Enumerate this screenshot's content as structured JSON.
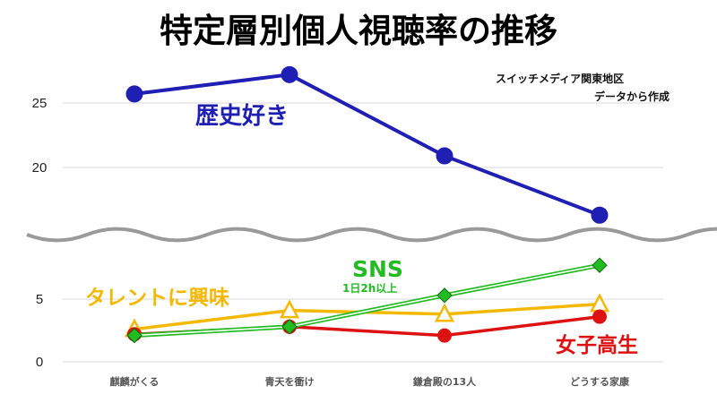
{
  "colors": {
    "history": "#1f1fb4",
    "talent": "#f5b800",
    "sns": "#22bb22",
    "joshi": "#dd1111",
    "grid": "#d9d9d9",
    "break": "#9a9a9a"
  },
  "chart_data": {
    "type": "line",
    "title": "特定層別個人視聴率の推移",
    "note_lines": [
      "スイッチメディア関東地区",
      "データから作成"
    ],
    "categories": [
      "麒麟がくる",
      "青天を衝け",
      "鎌倉殿の13人",
      "どうする家康"
    ],
    "y_ticks_upper": [
      "25",
      "20"
    ],
    "y_ticks_lower": [
      "5",
      "0"
    ],
    "axis_break": {
      "lower_max": 8.5,
      "upper_min": 15.5
    },
    "grid": true,
    "series": [
      {
        "name": "歴史好き",
        "values": [
          25.7,
          27.2,
          20.9,
          16.3
        ],
        "marker": "circle",
        "color_key": "history"
      },
      {
        "name": "タレントに興味",
        "values": [
          2.6,
          4.1,
          3.8,
          4.6
        ],
        "marker": "triangle",
        "color_key": "talent"
      },
      {
        "name": "SNS",
        "sublabel": "1日2h以上",
        "values": [
          2.1,
          2.8,
          5.3,
          7.7
        ],
        "marker": "diamond",
        "color_key": "sns"
      },
      {
        "name": "女子高生",
        "values": [
          2.2,
          2.8,
          2.1,
          3.6
        ],
        "marker": "circle",
        "color_key": "joshi"
      }
    ]
  }
}
